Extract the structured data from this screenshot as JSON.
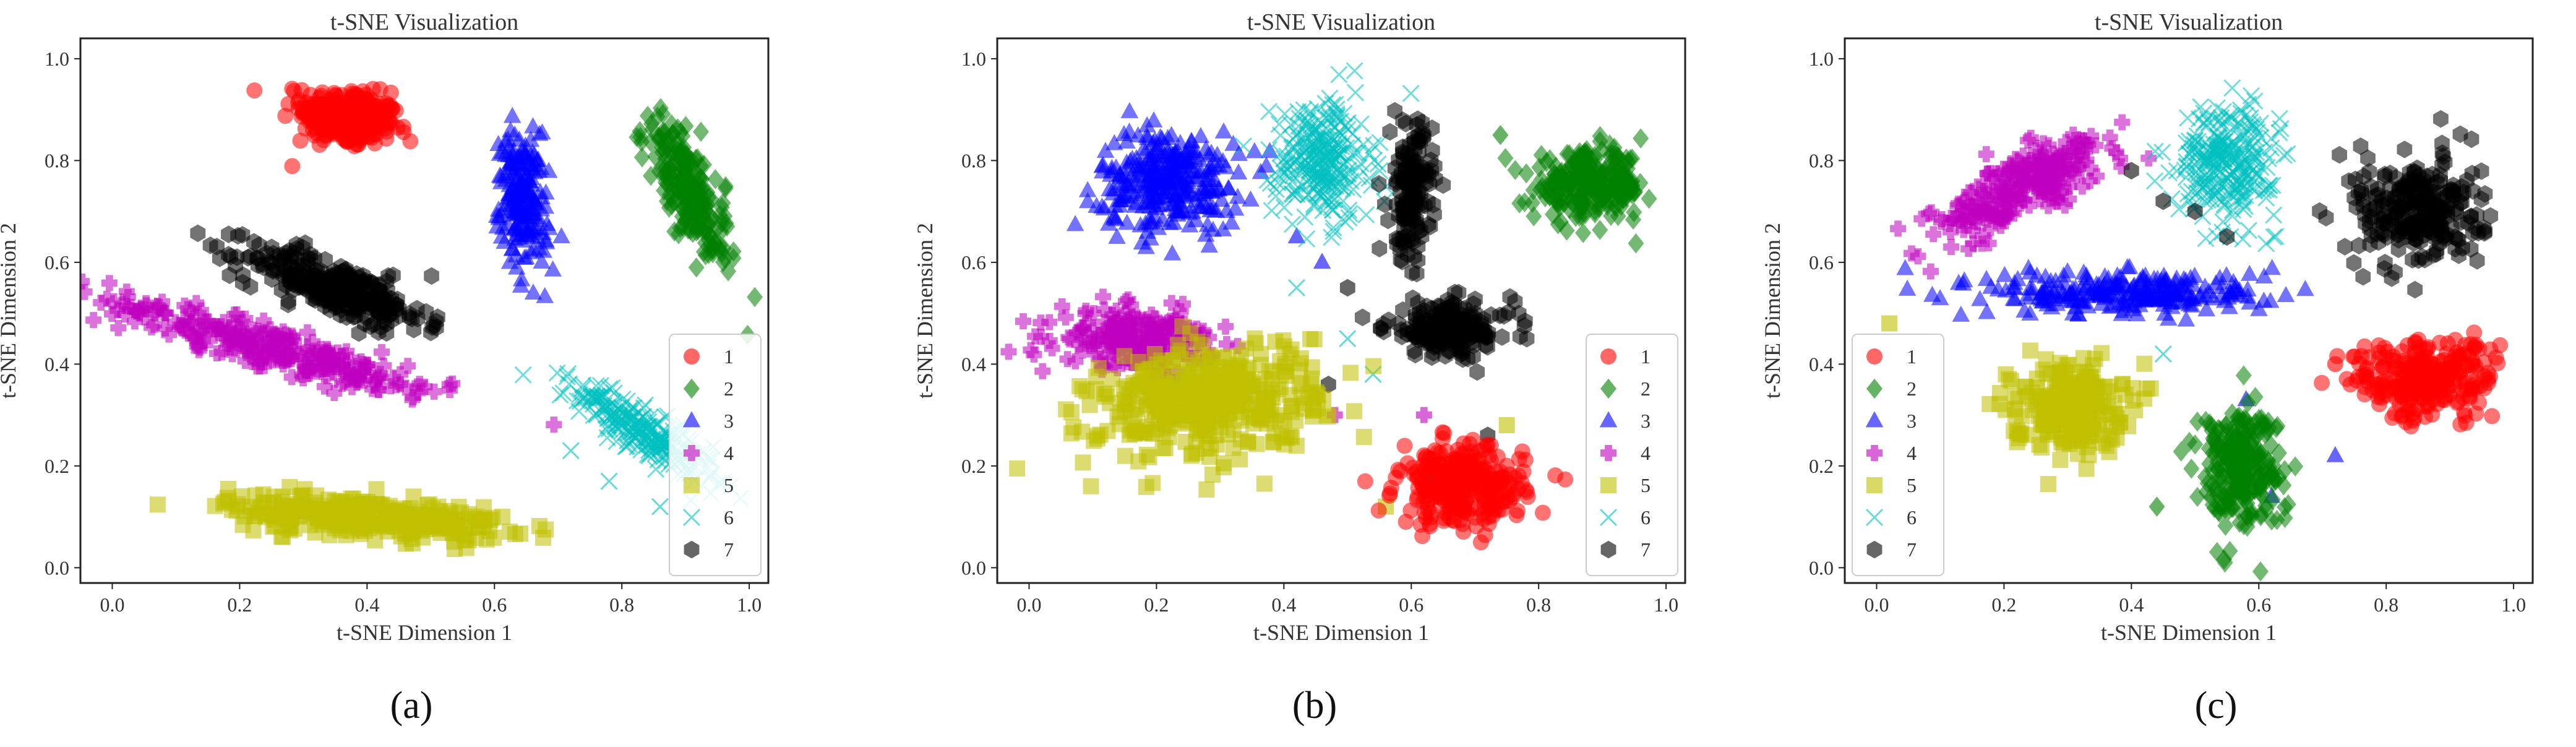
{
  "figure": {
    "panel_letters": [
      "(a)",
      "(b)",
      "(c)"
    ]
  },
  "style": {
    "colors": {
      "1": "#ff0000",
      "2": "#008000",
      "3": "#0000ff",
      "4": "#c000c0",
      "5": "#c0c000",
      "6": "#00c0c0",
      "7": "#000000"
    },
    "markers": {
      "1": "circle",
      "2": "diamond",
      "3": "triangle",
      "4": "plus",
      "5": "square",
      "6": "x",
      "7": "hexagon"
    }
  },
  "chart_data": [
    {
      "type": "scatter",
      "panel": "(a)",
      "title": "t-SNE Visualization",
      "xlabel": "t-SNE Dimension 1",
      "ylabel": "t-SNE Dimension 2",
      "xlim": [
        -0.05,
        1.03
      ],
      "ylim": [
        -0.03,
        1.04
      ],
      "xticks": [
        "0.0",
        "0.2",
        "0.4",
        "0.6",
        "0.8",
        "1.0"
      ],
      "yticks": [
        "0.0",
        "0.2",
        "0.4",
        "0.6",
        "0.8",
        "1.0"
      ],
      "legend": [
        "1",
        "2",
        "3",
        "4",
        "5",
        "6",
        "7"
      ],
      "legend_position": "lower-right",
      "clusters": [
        {
          "class": "1",
          "center": [
            0.37,
            0.885
          ],
          "spread": [
            0.07,
            0.05
          ],
          "angle": -15,
          "count": 320,
          "outliers": []
        },
        {
          "class": "3",
          "center": [
            0.645,
            0.72
          ],
          "spread": [
            0.035,
            0.12
          ],
          "angle": 5,
          "count": 200,
          "outliers": []
        },
        {
          "class": "2",
          "center": [
            0.905,
            0.74
          ],
          "spread": [
            0.035,
            0.14
          ],
          "angle": 20,
          "count": 220,
          "outliers": []
        },
        {
          "class": "7",
          "center": [
            0.35,
            0.55
          ],
          "spread": [
            0.14,
            0.045
          ],
          "angle": -25,
          "count": 300,
          "outliers": []
        },
        {
          "class": "4",
          "center": [
            0.26,
            0.43
          ],
          "spread": [
            0.26,
            0.035
          ],
          "angle": -20,
          "count": 300,
          "outliers": []
        },
        {
          "class": "6",
          "center": [
            0.83,
            0.27
          ],
          "spread": [
            0.13,
            0.035
          ],
          "angle": -40,
          "count": 240,
          "outliers": [
            [
              0.72,
              0.23
            ],
            [
              0.78,
              0.17
            ],
            [
              0.86,
              0.12
            ]
          ]
        },
        {
          "class": "5",
          "center": [
            0.4,
            0.1
          ],
          "spread": [
            0.2,
            0.035
          ],
          "angle": -5,
          "count": 320,
          "outliers": []
        }
      ]
    },
    {
      "type": "scatter",
      "panel": "(b)",
      "title": "t-SNE Visualization",
      "xlabel": "t-SNE Dimension 1",
      "ylabel": "t-SNE Dimension 2",
      "xlim": [
        -0.05,
        1.03
      ],
      "ylim": [
        -0.03,
        1.04
      ],
      "xticks": [
        "0.0",
        "0.2",
        "0.4",
        "0.6",
        "0.8",
        "1.0"
      ],
      "yticks": [
        "0.0",
        "0.2",
        "0.4",
        "0.6",
        "0.8",
        "1.0"
      ],
      "legend": [
        "1",
        "2",
        "3",
        "4",
        "5",
        "6",
        "7"
      ],
      "legend_position": "lower-right",
      "clusters": [
        {
          "class": "3",
          "center": [
            0.22,
            0.76
          ],
          "spread": [
            0.1,
            0.09
          ],
          "angle": 0,
          "count": 300,
          "outliers": [
            [
              0.42,
              0.65
            ],
            [
              0.46,
              0.6
            ]
          ]
        },
        {
          "class": "6",
          "center": [
            0.46,
            0.8
          ],
          "spread": [
            0.07,
            0.11
          ],
          "angle": 0,
          "count": 260,
          "outliers": [
            [
              0.5,
              0.45
            ],
            [
              0.54,
              0.38
            ],
            [
              0.42,
              0.55
            ]
          ]
        },
        {
          "class": "7",
          "center": [
            0.6,
            0.74
          ],
          "spread": [
            0.03,
            0.12
          ],
          "angle": 0,
          "count": 160,
          "outliers": []
        },
        {
          "class": "7",
          "center": [
            0.66,
            0.47
          ],
          "spread": [
            0.09,
            0.05
          ],
          "angle": 0,
          "count": 200,
          "outliers": [
            [
              0.5,
              0.55
            ],
            [
              0.47,
              0.36
            ],
            [
              0.63,
              0.17
            ],
            [
              0.72,
              0.26
            ]
          ]
        },
        {
          "class": "2",
          "center": [
            0.88,
            0.75
          ],
          "spread": [
            0.08,
            0.06
          ],
          "angle": 0,
          "count": 260,
          "outliers": [
            [
              0.74,
              0.85
            ]
          ]
        },
        {
          "class": "4",
          "center": [
            0.17,
            0.45
          ],
          "spread": [
            0.11,
            0.05
          ],
          "angle": 0,
          "count": 240,
          "outliers": [
            [
              0.62,
              0.3
            ],
            [
              0.48,
              0.3
            ]
          ]
        },
        {
          "class": "5",
          "center": [
            0.28,
            0.33
          ],
          "spread": [
            0.16,
            0.1
          ],
          "angle": 10,
          "count": 420,
          "outliers": [
            [
              0.75,
              0.28
            ],
            [
              0.56,
              0.12
            ]
          ]
        },
        {
          "class": "1",
          "center": [
            0.68,
            0.16
          ],
          "spread": [
            0.09,
            0.07
          ],
          "angle": 0,
          "count": 300,
          "outliers": []
        }
      ]
    },
    {
      "type": "scatter",
      "panel": "(c)",
      "title": "t-SNE Visualization",
      "xlabel": "t-SNE Dimension 1",
      "ylabel": "t-SNE Dimension 2",
      "xlim": [
        -0.05,
        1.03
      ],
      "ylim": [
        -0.03,
        1.04
      ],
      "xticks": [
        "0.0",
        "0.2",
        "0.4",
        "0.6",
        "0.8",
        "1.0"
      ],
      "yticks": [
        "0.0",
        "0.2",
        "0.4",
        "0.6",
        "0.8",
        "1.0"
      ],
      "legend": [
        "1",
        "2",
        "3",
        "4",
        "5",
        "6",
        "7"
      ],
      "legend_position": "lower-left",
      "clusters": [
        {
          "class": "4",
          "center": [
            0.23,
            0.75
          ],
          "spread": [
            0.15,
            0.05
          ],
          "angle": 35,
          "count": 260,
          "outliers": []
        },
        {
          "class": "6",
          "center": [
            0.55,
            0.8
          ],
          "spread": [
            0.07,
            0.1
          ],
          "angle": 0,
          "count": 260,
          "outliers": [
            [
              0.45,
              0.42
            ]
          ]
        },
        {
          "class": "7",
          "center": [
            0.85,
            0.7
          ],
          "spread": [
            0.09,
            0.1
          ],
          "angle": 0,
          "count": 260,
          "outliers": [
            [
              0.45,
              0.72
            ],
            [
              0.5,
              0.7
            ],
            [
              0.55,
              0.65
            ],
            [
              0.4,
              0.78
            ]
          ]
        },
        {
          "class": "3",
          "center": [
            0.4,
            0.54
          ],
          "spread": [
            0.2,
            0.04
          ],
          "angle": 0,
          "count": 260,
          "outliers": [
            [
              0.58,
              0.33
            ],
            [
              0.62,
              0.14
            ],
            [
              0.72,
              0.22
            ]
          ]
        },
        {
          "class": "5",
          "center": [
            0.3,
            0.32
          ],
          "spread": [
            0.08,
            0.08
          ],
          "angle": 0,
          "count": 240,
          "outliers": [
            [
              0.02,
              0.48
            ]
          ]
        },
        {
          "class": "2",
          "center": [
            0.57,
            0.2
          ],
          "spread": [
            0.06,
            0.11
          ],
          "angle": 0,
          "count": 260,
          "outliers": [
            [
              0.44,
              0.12
            ]
          ]
        },
        {
          "class": "1",
          "center": [
            0.86,
            0.37
          ],
          "spread": [
            0.1,
            0.07
          ],
          "angle": 0,
          "count": 280,
          "outliers": [
            [
              0.72,
              0.4
            ]
          ]
        }
      ]
    }
  ]
}
